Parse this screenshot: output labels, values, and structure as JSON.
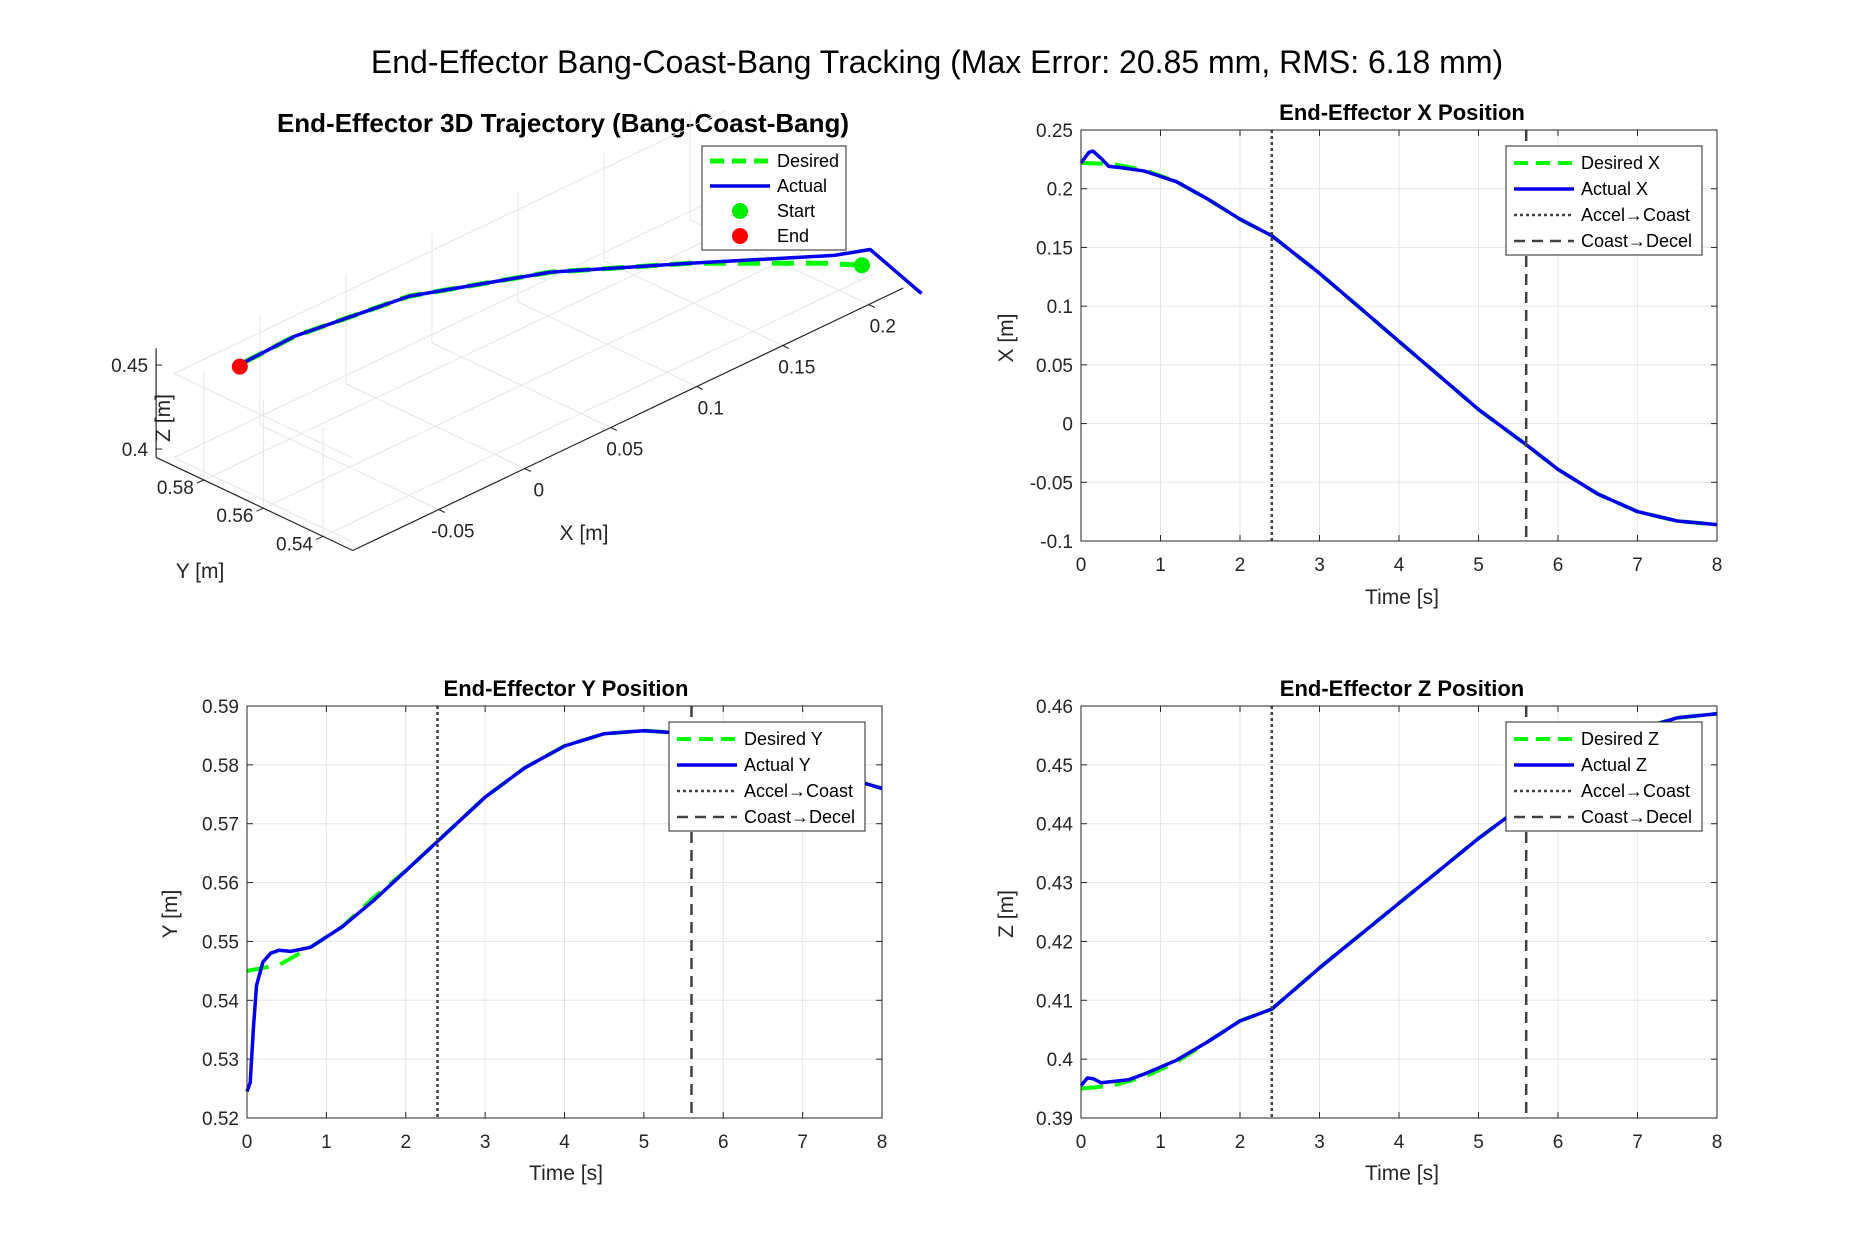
{
  "figure": {
    "title": "End-Effector Bang-Coast-Bang Tracking (Max Error: 20.85 mm, RMS: 6.18 mm)"
  },
  "colors": {
    "desired": "#00ff00",
    "actual": "#0000ee",
    "start_marker": "#00ee00",
    "end_marker": "#ff0000",
    "phase_lines": "#404040",
    "grid": "#e6e6e6"
  },
  "chart_data": [
    {
      "id": "traj3d",
      "type": "line",
      "title": "End-Effector 3D Trajectory (Bang-Coast-Bang)",
      "xlabel": "X [m]",
      "ylabel": "Y [m]",
      "zlabel": "Z [m]",
      "x_ticks": [
        "-0.05",
        "0",
        "0.05",
        "0.1",
        "0.15",
        "0.2"
      ],
      "y_ticks": [
        "0.54",
        "0.56",
        "0.58"
      ],
      "z_ticks": [
        "0.4",
        "0.45"
      ],
      "grid": true,
      "legend": {
        "location": "top-right",
        "entries": [
          "Desired",
          "Actual",
          "Start",
          "End"
        ]
      },
      "series": [
        {
          "name": "Desired",
          "style": "dashed",
          "x": [
            0.222,
            0.21,
            0.16,
            0.1,
            0.03,
            -0.04,
            -0.08,
            -0.086
          ],
          "y": [
            0.545,
            0.551,
            0.567,
            0.579,
            0.586,
            0.584,
            0.578,
            0.576
          ],
          "z": [
            0.395,
            0.397,
            0.408,
            0.422,
            0.436,
            0.448,
            0.457,
            0.459
          ]
        },
        {
          "name": "Actual",
          "style": "solid",
          "x": [
            0.222,
            0.232,
            0.218,
            0.16,
            0.1,
            0.03,
            -0.04,
            -0.08,
            -0.086
          ],
          "y": [
            0.525,
            0.548,
            0.552,
            0.567,
            0.579,
            0.586,
            0.584,
            0.578,
            0.576
          ],
          "z": [
            0.395,
            0.397,
            0.397,
            0.408,
            0.422,
            0.436,
            0.448,
            0.457,
            0.459
          ]
        }
      ],
      "markers": [
        {
          "name": "Start",
          "x": 0.222,
          "y": 0.545,
          "z": 0.395
        },
        {
          "name": "End",
          "x": -0.086,
          "y": 0.576,
          "z": 0.459
        }
      ]
    },
    {
      "id": "xpos",
      "type": "line",
      "title": "End-Effector X Position",
      "xlabel": "Time [s]",
      "ylabel": "X [m]",
      "xlim": [
        0,
        8
      ],
      "ylim": [
        -0.1,
        0.25
      ],
      "x_ticks": [
        "0",
        "1",
        "2",
        "3",
        "4",
        "5",
        "6",
        "7",
        "8"
      ],
      "y_ticks": [
        "-0.1",
        "-0.05",
        "0",
        "0.05",
        "0.1",
        "0.15",
        "0.2",
        "0.25"
      ],
      "grid": true,
      "legend": {
        "location": "top-right",
        "entries": [
          "Desired X",
          "Actual X",
          "Accel→Coast",
          "Coast→Decel"
        ]
      },
      "phase_lines": [
        2.4,
        5.6
      ],
      "series": [
        {
          "name": "Desired X",
          "style": "dashed",
          "t": [
            0,
            0.4,
            0.8,
            1.2,
            1.6,
            2.0,
            2.4,
            3.0,
            3.5,
            4.0,
            4.5,
            5.0,
            5.6,
            6.0,
            6.5,
            7.0,
            7.5,
            8.0
          ],
          "v": [
            0.222,
            0.221,
            0.216,
            0.206,
            0.191,
            0.174,
            0.16,
            0.128,
            0.099,
            0.07,
            0.041,
            0.012,
            -0.018,
            -0.039,
            -0.06,
            -0.075,
            -0.083,
            -0.086
          ]
        },
        {
          "name": "Actual X",
          "style": "solid",
          "t": [
            0,
            0.1,
            0.15,
            0.25,
            0.35,
            0.5,
            0.8,
            1.2,
            1.6,
            2.0,
            2.4,
            3.0,
            3.5,
            4.0,
            4.5,
            5.0,
            5.6,
            6.0,
            6.5,
            7.0,
            7.5,
            8.0
          ],
          "v": [
            0.222,
            0.231,
            0.232,
            0.226,
            0.219,
            0.218,
            0.215,
            0.206,
            0.191,
            0.174,
            0.16,
            0.128,
            0.099,
            0.07,
            0.041,
            0.012,
            -0.018,
            -0.039,
            -0.06,
            -0.075,
            -0.083,
            -0.086
          ]
        }
      ]
    },
    {
      "id": "ypos",
      "type": "line",
      "title": "End-Effector Y Position",
      "xlabel": "Time [s]",
      "ylabel": "Y [m]",
      "xlim": [
        0,
        8
      ],
      "ylim": [
        0.52,
        0.59
      ],
      "x_ticks": [
        "0",
        "1",
        "2",
        "3",
        "4",
        "5",
        "6",
        "7",
        "8"
      ],
      "y_ticks": [
        "0.52",
        "0.53",
        "0.54",
        "0.55",
        "0.56",
        "0.57",
        "0.58",
        "0.59"
      ],
      "grid": true,
      "legend": {
        "location": "top-right",
        "entries": [
          "Desired Y",
          "Actual Y",
          "Accel→Coast",
          "Coast→Decel"
        ]
      },
      "phase_lines": [
        2.4,
        5.6
      ],
      "series": [
        {
          "name": "Desired Y",
          "style": "dashed",
          "t": [
            0,
            0.4,
            0.8,
            1.2,
            1.6,
            2.0,
            2.4,
            3.0,
            3.5,
            4.0,
            4.5,
            5.0,
            5.6,
            6.0,
            6.5,
            7.0,
            7.5,
            8.0
          ],
          "v": [
            0.545,
            0.546,
            0.549,
            0.5525,
            0.5575,
            0.562,
            0.567,
            0.5745,
            0.5795,
            0.5832,
            0.5853,
            0.5858,
            0.5853,
            0.5845,
            0.583,
            0.5805,
            0.578,
            0.576
          ]
        },
        {
          "name": "Actual Y",
          "style": "solid",
          "t": [
            0,
            0.04,
            0.08,
            0.12,
            0.2,
            0.3,
            0.4,
            0.55,
            0.8,
            1.2,
            1.6,
            2.0,
            2.4,
            3.0,
            3.5,
            4.0,
            4.5,
            5.0,
            5.6,
            6.0,
            6.5,
            7.0,
            7.5,
            8.0
          ],
          "v": [
            0.5245,
            0.526,
            0.535,
            0.5425,
            0.5465,
            0.548,
            0.5485,
            0.5483,
            0.549,
            0.5525,
            0.557,
            0.562,
            0.567,
            0.5745,
            0.5795,
            0.5832,
            0.5853,
            0.5858,
            0.5853,
            0.5845,
            0.583,
            0.5805,
            0.578,
            0.576
          ]
        }
      ]
    },
    {
      "id": "zpos",
      "type": "line",
      "title": "End-Effector Z Position",
      "xlabel": "Time [s]",
      "ylabel": "Z [m]",
      "xlim": [
        0,
        8
      ],
      "ylim": [
        0.39,
        0.46
      ],
      "x_ticks": [
        "0",
        "1",
        "2",
        "3",
        "4",
        "5",
        "6",
        "7",
        "8"
      ],
      "y_ticks": [
        "0.39",
        "0.4",
        "0.41",
        "0.42",
        "0.43",
        "0.44",
        "0.45",
        "0.46"
      ],
      "grid": true,
      "legend": {
        "location": "top-right",
        "entries": [
          "Desired Z",
          "Actual Z",
          "Accel→Coast",
          "Coast→Decel"
        ]
      },
      "phase_lines": [
        2.4,
        5.6
      ],
      "series": [
        {
          "name": "Desired Z",
          "style": "dashed",
          "t": [
            0,
            0.4,
            0.8,
            1.2,
            1.6,
            2.0,
            2.4,
            3.0,
            3.5,
            4.0,
            4.5,
            5.0,
            5.6,
            6.0,
            6.5,
            7.0,
            7.5,
            8.0
          ],
          "v": [
            0.395,
            0.3955,
            0.397,
            0.3995,
            0.403,
            0.4065,
            0.4085,
            0.4155,
            0.421,
            0.4265,
            0.432,
            0.4375,
            0.4435,
            0.4485,
            0.453,
            0.456,
            0.458,
            0.4587
          ]
        },
        {
          "name": "Actual Z",
          "style": "solid",
          "t": [
            0,
            0.08,
            0.15,
            0.25,
            0.4,
            0.6,
            0.8,
            1.2,
            1.6,
            2.0,
            2.4,
            3.0,
            3.5,
            4.0,
            4.5,
            5.0,
            5.6,
            6.0,
            6.5,
            7.0,
            7.5,
            8.0
          ],
          "v": [
            0.3955,
            0.3968,
            0.3967,
            0.396,
            0.3962,
            0.3965,
            0.3975,
            0.3998,
            0.403,
            0.4065,
            0.4085,
            0.4155,
            0.421,
            0.4265,
            0.432,
            0.4375,
            0.4435,
            0.4485,
            0.453,
            0.456,
            0.458,
            0.4587
          ]
        }
      ]
    }
  ]
}
